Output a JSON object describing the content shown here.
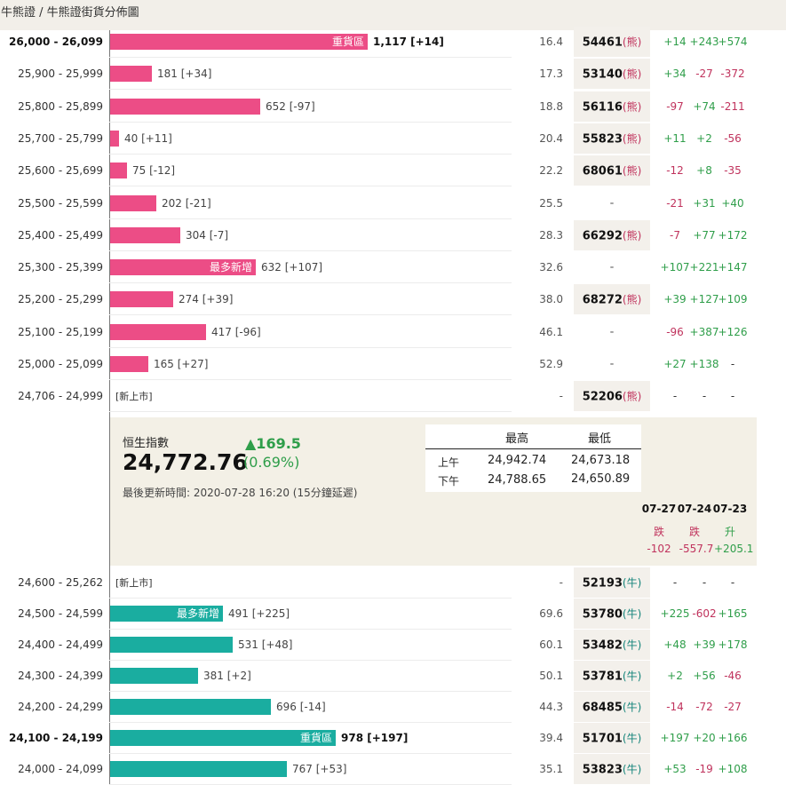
{
  "breadcrumb": "牛熊證 / 牛熊證街貨分佈圖",
  "bear_rows": [
    {
      "range": "26,000 - 26,099",
      "bold": true,
      "bar": 1117,
      "tag": "重貨區",
      "value": "1,117 [+14]",
      "pct": "16.4",
      "code": "54461",
      "sfx": "(熊)",
      "c1": "+14",
      "c2": "+243",
      "c3": "+574"
    },
    {
      "range": "25,900 - 25,999",
      "bold": false,
      "bar": 181,
      "tag": "",
      "value": "181 [+34]",
      "pct": "17.3",
      "code": "53140",
      "sfx": "(熊)",
      "c1": "+34",
      "c2": "-27",
      "c3": "-372"
    },
    {
      "range": "25,800 - 25,899",
      "bold": false,
      "bar": 652,
      "tag": "",
      "value": "652 [-97]",
      "pct": "18.8",
      "code": "56116",
      "sfx": "(熊)",
      "c1": "-97",
      "c2": "+74",
      "c3": "-211"
    },
    {
      "range": "25,700 - 25,799",
      "bold": false,
      "bar": 40,
      "tag": "",
      "value": "40 [+11]",
      "pct": "20.4",
      "code": "55823",
      "sfx": "(熊)",
      "c1": "+11",
      "c2": "+2",
      "c3": "-56"
    },
    {
      "range": "25,600 - 25,699",
      "bold": false,
      "bar": 75,
      "tag": "",
      "value": "75 [-12]",
      "pct": "22.2",
      "code": "68061",
      "sfx": "(熊)",
      "c1": "-12",
      "c2": "+8",
      "c3": "-35"
    },
    {
      "range": "25,500 - 25,599",
      "bold": false,
      "bar": 202,
      "tag": "",
      "value": "202 [-21]",
      "pct": "25.5",
      "code": "-",
      "sfx": "",
      "c1": "-21",
      "c2": "+31",
      "c3": "+40"
    },
    {
      "range": "25,400 - 25,499",
      "bold": false,
      "bar": 304,
      "tag": "",
      "value": "304 [-7]",
      "pct": "28.3",
      "code": "66292",
      "sfx": "(熊)",
      "c1": "-7",
      "c2": "+77",
      "c3": "+172"
    },
    {
      "range": "25,300 - 25,399",
      "bold": false,
      "bar": 632,
      "tag": "最多新增",
      "value": "632 [+107]",
      "pct": "32.6",
      "code": "-",
      "sfx": "",
      "c1": "+107",
      "c2": "+221",
      "c3": "+147"
    },
    {
      "range": "25,200 - 25,299",
      "bold": false,
      "bar": 274,
      "tag": "",
      "value": "274 [+39]",
      "pct": "38.0",
      "code": "68272",
      "sfx": "(熊)",
      "c1": "+39",
      "c2": "+127",
      "c3": "+109"
    },
    {
      "range": "25,100 - 25,199",
      "bold": false,
      "bar": 417,
      "tag": "",
      "value": "417 [-96]",
      "pct": "46.1",
      "code": "-",
      "sfx": "",
      "c1": "-96",
      "c2": "+387",
      "c3": "+126"
    },
    {
      "range": "25,000 - 25,099",
      "bold": false,
      "bar": 165,
      "tag": "",
      "value": "165 [+27]",
      "pct": "52.9",
      "code": "-",
      "sfx": "",
      "c1": "+27",
      "c2": "+138",
      "c3": "-"
    },
    {
      "range": "24,706 - 24,999",
      "bold": false,
      "bar": 0,
      "newlist": "[新上市]",
      "tag": "",
      "value": "",
      "pct": "-",
      "code": "52206",
      "sfx": "(熊)",
      "c1": "-",
      "c2": "-",
      "c3": "-"
    }
  ],
  "index": {
    "title": "恒生指數",
    "value": "24,772.76",
    "change": "▲169.5",
    "change_pct": "(0.69%)",
    "updated": "最後更新時間: 2020-07-28 16:20 (15分鐘延遲)",
    "high_label": "最高",
    "low_label": "最低",
    "am_label": "上午",
    "pm_label": "下午",
    "am_high": "24,942.74",
    "am_low": "24,673.18",
    "pm_high": "24,788.65",
    "pm_low": "24,650.89",
    "history": [
      {
        "date": "07-27",
        "dir": "跌",
        "val": "-102",
        "trend": "down"
      },
      {
        "date": "07-24",
        "dir": "跌",
        "val": "-557.7",
        "trend": "down"
      },
      {
        "date": "07-23",
        "dir": "升",
        "val": "+205.1",
        "trend": "up"
      }
    ]
  },
  "bull_rows": [
    {
      "range": "24,600 - 25,262",
      "bold": false,
      "bar": 0,
      "newlist": "[新上市]",
      "tag": "",
      "value": "",
      "pct": "-",
      "code": "52193",
      "sfx": "(牛)",
      "c1": "-",
      "c2": "-",
      "c3": "-"
    },
    {
      "range": "24,500 - 24,599",
      "bold": false,
      "bar": 491,
      "tag": "最多新增",
      "value": "491 [+225]",
      "pct": "69.6",
      "code": "53780",
      "sfx": "(牛)",
      "c1": "+225",
      "c2": "-602",
      "c3": "+165"
    },
    {
      "range": "24,400 - 24,499",
      "bold": false,
      "bar": 531,
      "tag": "",
      "value": "531 [+48]",
      "pct": "60.1",
      "code": "53482",
      "sfx": "(牛)",
      "c1": "+48",
      "c2": "+39",
      "c3": "+178"
    },
    {
      "range": "24,300 - 24,399",
      "bold": false,
      "bar": 381,
      "tag": "",
      "value": "381 [+2]",
      "pct": "50.1",
      "code": "53781",
      "sfx": "(牛)",
      "c1": "+2",
      "c2": "+56",
      "c3": "-46"
    },
    {
      "range": "24,200 - 24,299",
      "bold": false,
      "bar": 696,
      "tag": "",
      "value": "696 [-14]",
      "pct": "44.3",
      "code": "68485",
      "sfx": "(牛)",
      "c1": "-14",
      "c2": "-72",
      "c3": "-27"
    },
    {
      "range": "24,100 - 24,199",
      "bold": true,
      "bar": 978,
      "tag": "重貨區",
      "value": "978 [+197]",
      "pct": "39.4",
      "code": "51701",
      "sfx": "(牛)",
      "c1": "+197",
      "c2": "+20",
      "c3": "+166"
    },
    {
      "range": "24,000 - 24,099",
      "bold": false,
      "bar": 767,
      "tag": "",
      "value": "767 [+53]",
      "pct": "35.1",
      "code": "53823",
      "sfx": "(牛)",
      "c1": "+53",
      "c2": "-19",
      "c3": "+108"
    }
  ],
  "colors": {
    "bear": "#ec4d86",
    "bull": "#1aada0",
    "up": "#2f9e4a",
    "down": "#c0335d"
  }
}
